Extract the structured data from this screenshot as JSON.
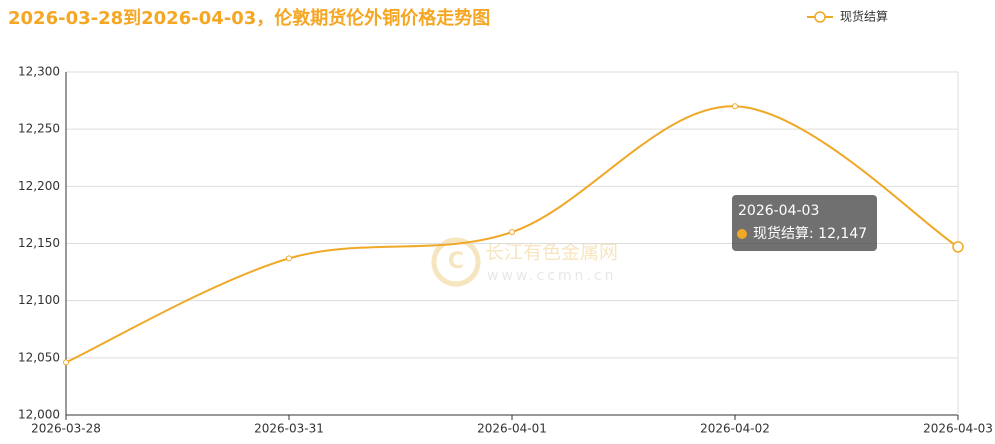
{
  "chart_data": {
    "type": "line",
    "title": "2026-03-28到2026-04-03，伦敦期货伦外铜价格走势图",
    "x": [
      "2026-03-28",
      "2026-03-31",
      "2026-04-01",
      "2026-04-02",
      "2026-04-03"
    ],
    "series": [
      {
        "name": "现货结算",
        "color": "#f0a827",
        "values": [
          12046,
          12137,
          12160,
          12270,
          12147
        ],
        "value_labels": [
          null,
          null,
          null,
          null,
          "12,147"
        ]
      }
    ],
    "ylim": [
      12000,
      12300
    ],
    "yticks": [
      {
        "value": 12000,
        "label": "12,000"
      },
      {
        "value": 12050,
        "label": "12,050"
      },
      {
        "value": 12100,
        "label": "12,100"
      },
      {
        "value": 12150,
        "label": "12,150"
      },
      {
        "value": 12200,
        "label": "12,200"
      },
      {
        "value": 12250,
        "label": "12,250"
      },
      {
        "value": 12300,
        "label": "12,300"
      }
    ],
    "grid": true,
    "smooth": true,
    "legend": "top-right",
    "watermark": {
      "name": "长江有色金属网",
      "url": "www.ccmn.cn"
    }
  }
}
